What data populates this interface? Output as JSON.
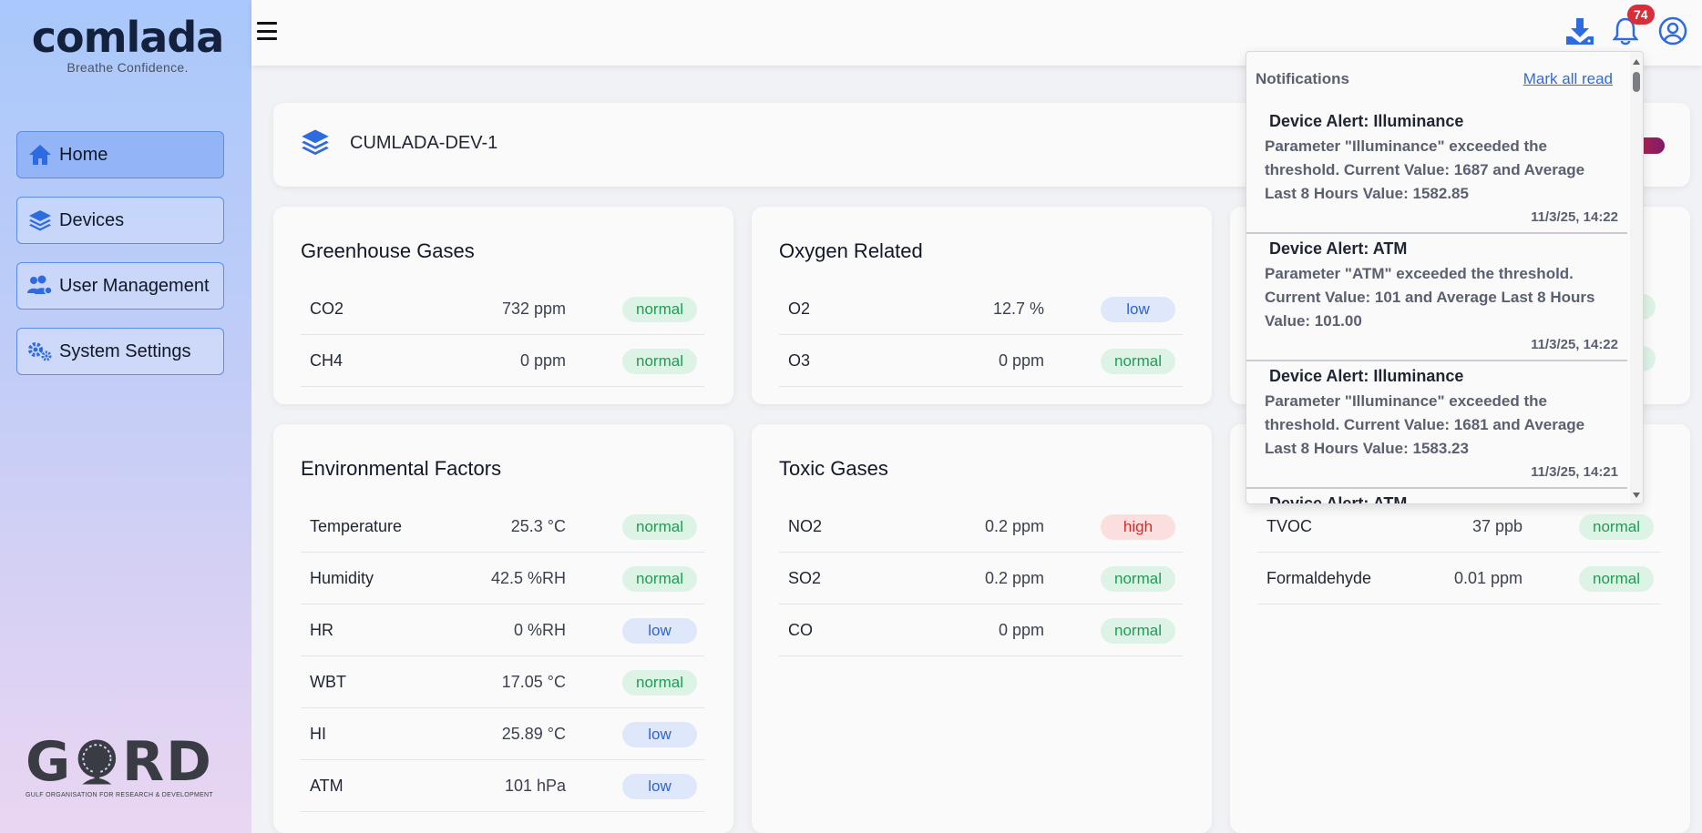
{
  "brand": {
    "logo": "comlada",
    "tagline": "Breathe Confidence."
  },
  "sidebar": {
    "items": [
      {
        "label": "Home",
        "icon": "home-icon",
        "active": true
      },
      {
        "label": "Devices",
        "icon": "layers-icon",
        "active": false
      },
      {
        "label": "User Management",
        "icon": "users-icon",
        "active": false
      },
      {
        "label": "System Settings",
        "icon": "gears-icon",
        "active": false
      }
    ]
  },
  "footer_logo": {
    "mark": "GORD",
    "subtitle": "GULF ORGANISATION FOR RESEARCH & DEVELOPMENT"
  },
  "header": {
    "notification_count": "74"
  },
  "device": {
    "name": "CUMLADA-DEV-1"
  },
  "cards": {
    "greenhouse": {
      "title": "Greenhouse Gases",
      "rows": [
        {
          "name": "CO2",
          "value": "732 ppm",
          "status": "normal"
        },
        {
          "name": "CH4",
          "value": "0 ppm",
          "status": "normal"
        }
      ]
    },
    "oxygen": {
      "title": "Oxygen Related",
      "rows": [
        {
          "name": "O2",
          "value": "12.7 %",
          "status": "low"
        },
        {
          "name": "O3",
          "value": "0 ppm",
          "status": "normal"
        }
      ]
    },
    "environmental": {
      "title": "Environmental Factors",
      "rows": [
        {
          "name": "Temperature",
          "value": "25.3 °C",
          "status": "normal"
        },
        {
          "name": "Humidity",
          "value": "42.5 %RH",
          "status": "normal"
        },
        {
          "name": "HR",
          "value": "0 %RH",
          "status": "low"
        },
        {
          "name": "WBT",
          "value": "17.05 °C",
          "status": "normal"
        },
        {
          "name": "HI",
          "value": "25.89 °C",
          "status": "low"
        },
        {
          "name": "ATM",
          "value": "101 hPa",
          "status": "low"
        }
      ]
    },
    "toxic": {
      "title": "Toxic Gases",
      "rows": [
        {
          "name": "NO2",
          "value": "0.2 ppm",
          "status": "high"
        },
        {
          "name": "SO2",
          "value": "0.2 ppm",
          "status": "normal"
        },
        {
          "name": "CO",
          "value": "0 ppm",
          "status": "normal"
        }
      ]
    },
    "volatile": {
      "rows": [
        {
          "name": "TVOC",
          "value": "37 ppb",
          "status": "normal"
        },
        {
          "name": "Formaldehyde",
          "value": "0.01 ppm",
          "status": "normal"
        }
      ]
    }
  },
  "notifications": {
    "title": "Notifications",
    "mark_all_read": "Mark all read",
    "items": [
      {
        "title": "Device Alert: Illuminance",
        "body": "Parameter \"Illuminance\" exceeded the threshold. Current Value: 1687 and Average Last 8 Hours Value: 1582.85",
        "time": "11/3/25, 14:22"
      },
      {
        "title": "Device Alert: ATM",
        "body": "Parameter \"ATM\" exceeded the threshold. Current Value: 101 and Average Last 8 Hours Value: 101.00",
        "time": "11/3/25, 14:22"
      },
      {
        "title": "Device Alert: Illuminance",
        "body": "Parameter \"Illuminance\" exceeded the threshold. Current Value: 1681 and Average Last 8 Hours Value: 1583.23",
        "time": "11/3/25, 14:21"
      },
      {
        "title": "Device Alert: ATM",
        "body": "",
        "time": ""
      }
    ]
  },
  "colors": {
    "accent": "#3b7be6",
    "normal": "#1e9d55",
    "low": "#2f63d6",
    "high": "#d62b2b",
    "badge": "#d92d3a"
  }
}
